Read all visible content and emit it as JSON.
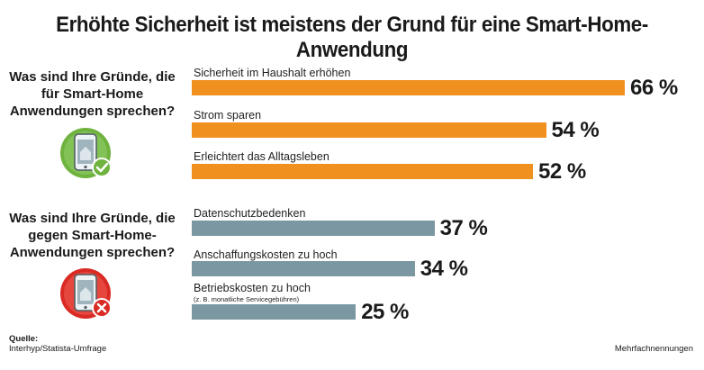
{
  "title": "Erhöhte Sicherheit ist meistens der Grund für eine Smart-Home-Anwendung",
  "questions": {
    "pro": "Was sind Ihre Gründe, die für Smart-Home Anwendungen sprechen?",
    "contra": "Was sind Ihre Gründe, die gegen Smart-Home-Anwendungen sprechen?"
  },
  "colors": {
    "pro_bar": "#f0901e",
    "contra_bar": "#7b98a2",
    "pro_icon_bg": "#6fb33f",
    "contra_icon_bg": "#d92a23"
  },
  "chart_data": {
    "type": "bar",
    "orientation": "horizontal",
    "title": "Erhöhte Sicherheit ist meistens der Grund für eine Smart-Home-Anwendung",
    "unit": "%",
    "xlim": [
      0,
      66
    ],
    "groups": [
      {
        "name": "pro",
        "categories": [
          "Sicherheit im Haushalt erhöhen",
          "Strom sparen",
          "Erleichtert das Alltagsleben"
        ],
        "values": [
          66,
          54,
          52
        ],
        "value_labels": [
          "66 %",
          "54 %",
          "52 %"
        ]
      },
      {
        "name": "contra",
        "categories": [
          "Datenschutzbedenken",
          "Anschaffungskosten zu hoch",
          "Betriebskosten zu hoch"
        ],
        "sublabels": [
          "",
          "",
          "(z. B. monatliche Servicegebühren)"
        ],
        "values": [
          37,
          34,
          25
        ],
        "value_labels": [
          "37 %",
          "34 %",
          "25 %"
        ]
      }
    ]
  },
  "footer": {
    "source_heading": "Quelle:",
    "source_text": "Interhyp/Statista-Umfrage",
    "note": "Mehrfachnennungen"
  },
  "icons": {
    "pro": "smartphone-checkmark-icon",
    "contra": "smartphone-cross-icon"
  }
}
